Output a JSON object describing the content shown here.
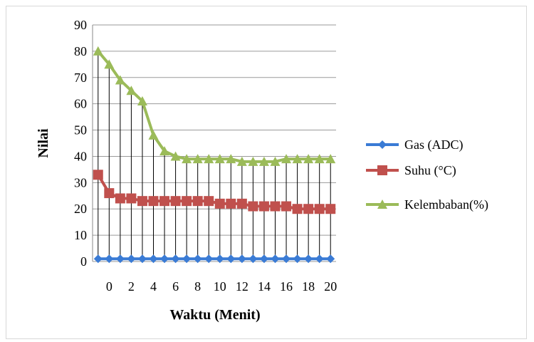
{
  "chart_data": {
    "type": "line",
    "xlabel": "Waktu (Menit)",
    "ylabel": "Nilai",
    "ylim": [
      0,
      90
    ],
    "yticks": [
      0,
      10,
      20,
      30,
      40,
      50,
      60,
      70,
      80,
      90
    ],
    "x": [
      -1,
      0,
      1,
      2,
      3,
      4,
      5,
      6,
      7,
      8,
      9,
      10,
      11,
      12,
      13,
      14,
      15,
      16,
      17,
      18,
      19,
      20
    ],
    "xticks": [
      0,
      2,
      4,
      6,
      8,
      10,
      12,
      14,
      16,
      18,
      20
    ],
    "grid": "horizontal major gridlines; vertical drop lines at each x",
    "legend_position": "right",
    "series": [
      {
        "name": "Gas (ADC)",
        "color": "#3a7bd5",
        "marker": "diamond",
        "values": [
          1,
          1,
          1,
          1,
          1,
          1,
          1,
          1,
          1,
          1,
          1,
          1,
          1,
          1,
          1,
          1,
          1,
          1,
          1,
          1,
          1,
          1
        ]
      },
      {
        "name": "Suhu (°C)",
        "color": "#c0504d",
        "marker": "square",
        "values": [
          33,
          26,
          24,
          24,
          23,
          23,
          23,
          23,
          23,
          23,
          23,
          22,
          22,
          22,
          21,
          21,
          21,
          21,
          20,
          20,
          20,
          20
        ]
      },
      {
        "name": "Kelembaban(%)",
        "color": "#9bbb59",
        "marker": "triangle",
        "values": [
          80,
          75,
          69,
          65,
          61,
          48,
          42,
          40,
          39,
          39,
          39,
          39,
          39,
          38,
          38,
          38,
          38,
          39,
          39,
          39,
          39,
          39
        ]
      }
    ]
  }
}
